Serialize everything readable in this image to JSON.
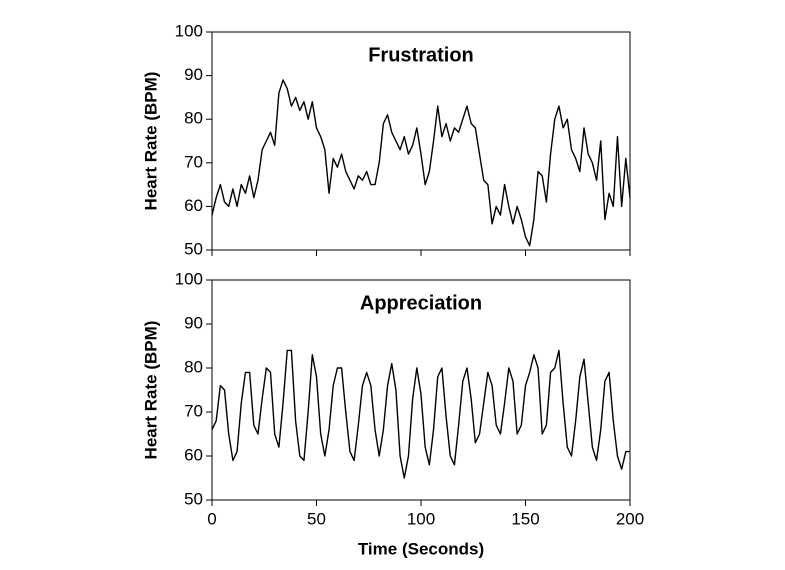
{
  "chart_data": [
    {
      "type": "line",
      "title": "Frustration",
      "y_label": "Heart Rate (BPM)",
      "x": [
        0,
        2,
        4,
        6,
        8,
        10,
        12,
        14,
        16,
        18,
        20,
        22,
        24,
        26,
        28,
        30,
        32,
        34,
        36,
        38,
        40,
        42,
        44,
        46,
        48,
        50,
        52,
        54,
        56,
        58,
        60,
        62,
        64,
        66,
        68,
        70,
        72,
        74,
        76,
        78,
        80,
        82,
        84,
        86,
        88,
        90,
        92,
        94,
        96,
        98,
        100,
        102,
        104,
        106,
        108,
        110,
        112,
        114,
        116,
        118,
        120,
        122,
        124,
        126,
        128,
        130,
        132,
        134,
        136,
        138,
        140,
        142,
        144,
        146,
        148,
        150,
        152,
        154,
        156,
        158,
        160,
        162,
        164,
        166,
        168,
        170,
        172,
        174,
        176,
        178,
        180,
        182,
        184,
        186,
        188,
        190,
        192,
        194,
        196,
        198,
        200
      ],
      "series": [
        {
          "name": "Frustration",
          "color": "#000000",
          "values": [
            58,
            62,
            65,
            61,
            60,
            64,
            60,
            65,
            63,
            67,
            62,
            66,
            73,
            75,
            77,
            74,
            86,
            89,
            87,
            83,
            85,
            82,
            84,
            80,
            84,
            78,
            76,
            73,
            63,
            71,
            69,
            72,
            68,
            66,
            64,
            67,
            66,
            68,
            65,
            65,
            70,
            79,
            81,
            77,
            75,
            73,
            76,
            72,
            74,
            78,
            72,
            65,
            68,
            75,
            83,
            76,
            79,
            75,
            78,
            77,
            80,
            83,
            79,
            78,
            72,
            66,
            65,
            56,
            60,
            58,
            65,
            60,
            56,
            60,
            57,
            53,
            51,
            57,
            68,
            67,
            61,
            72,
            80,
            83,
            78,
            80,
            73,
            71,
            68,
            78,
            72,
            70,
            66,
            75,
            57,
            63,
            60,
            76,
            60,
            71,
            62
          ]
        }
      ],
      "xlim": [
        0,
        200
      ],
      "xticks": [
        0,
        50,
        100,
        150,
        200
      ],
      "ylim": [
        50,
        100
      ],
      "yticks": [
        50,
        60,
        70,
        80,
        90,
        100
      ]
    },
    {
      "type": "line",
      "title": "Appreciation",
      "y_label": "Heart Rate (BPM)",
      "x_label": "Time (Seconds)",
      "x": [
        0,
        2,
        4,
        6,
        8,
        10,
        12,
        14,
        16,
        18,
        20,
        22,
        24,
        26,
        28,
        30,
        32,
        34,
        36,
        38,
        40,
        42,
        44,
        46,
        48,
        50,
        52,
        54,
        56,
        58,
        60,
        62,
        64,
        66,
        68,
        70,
        72,
        74,
        76,
        78,
        80,
        82,
        84,
        86,
        88,
        90,
        92,
        94,
        96,
        98,
        100,
        102,
        104,
        106,
        108,
        110,
        112,
        114,
        116,
        118,
        120,
        122,
        124,
        126,
        128,
        130,
        132,
        134,
        136,
        138,
        140,
        142,
        144,
        146,
        148,
        150,
        152,
        154,
        156,
        158,
        160,
        162,
        164,
        166,
        168,
        170,
        172,
        174,
        176,
        178,
        180,
        182,
        184,
        186,
        188,
        190,
        192,
        194,
        196,
        198,
        200
      ],
      "series": [
        {
          "name": "Appreciation",
          "color": "#000000",
          "values": [
            66,
            68,
            76,
            75,
            65,
            59,
            61,
            72,
            79,
            79,
            67,
            65,
            73,
            80,
            79,
            65,
            62,
            72,
            84,
            84,
            68,
            60,
            59,
            70,
            83,
            78,
            65,
            60,
            66,
            76,
            80,
            80,
            70,
            61,
            59,
            67,
            76,
            79,
            76,
            66,
            60,
            66,
            76,
            81,
            75,
            60,
            55,
            60,
            73,
            80,
            74,
            62,
            58,
            66,
            78,
            80,
            69,
            60,
            58,
            67,
            77,
            80,
            73,
            63,
            65,
            72,
            79,
            76,
            67,
            65,
            72,
            80,
            77,
            65,
            67,
            76,
            79,
            83,
            80,
            65,
            67,
            79,
            80,
            84,
            72,
            62,
            60,
            68,
            78,
            82,
            72,
            62,
            59,
            66,
            77,
            79,
            68,
            60,
            57,
            61,
            61
          ]
        }
      ],
      "xlim": [
        0,
        200
      ],
      "xticks": [
        0,
        50,
        100,
        150,
        200
      ],
      "ylim": [
        50,
        100
      ],
      "yticks": [
        50,
        60,
        70,
        80,
        90,
        100
      ]
    }
  ]
}
